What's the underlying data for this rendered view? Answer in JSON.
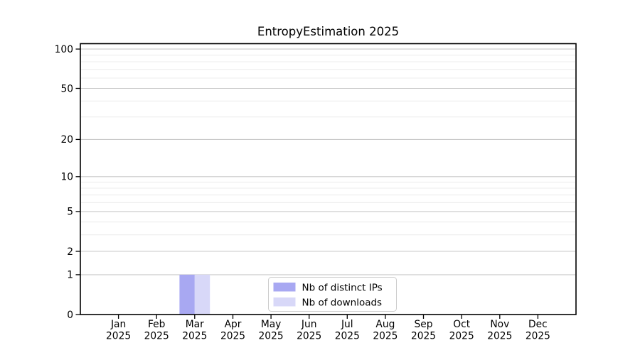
{
  "chart_data": {
    "type": "bar",
    "title": "EntropyEstimation 2025",
    "categories": [
      {
        "month": "Jan",
        "year": "2025"
      },
      {
        "month": "Feb",
        "year": "2025"
      },
      {
        "month": "Mar",
        "year": "2025"
      },
      {
        "month": "Apr",
        "year": "2025"
      },
      {
        "month": "May",
        "year": "2025"
      },
      {
        "month": "Jun",
        "year": "2025"
      },
      {
        "month": "Jul",
        "year": "2025"
      },
      {
        "month": "Aug",
        "year": "2025"
      },
      {
        "month": "Sep",
        "year": "2025"
      },
      {
        "month": "Oct",
        "year": "2025"
      },
      {
        "month": "Nov",
        "year": "2025"
      },
      {
        "month": "Dec",
        "year": "2025"
      }
    ],
    "series": [
      {
        "name": "Nb of distinct IPs",
        "color": "#a8a8f2",
        "values": [
          0,
          0,
          1,
          0,
          0,
          0,
          0,
          0,
          0,
          0,
          0,
          0
        ]
      },
      {
        "name": "Nb of downloads",
        "color": "#d8d8f8",
        "values": [
          0,
          0,
          1,
          0,
          0,
          0,
          0,
          0,
          0,
          0,
          0,
          0
        ]
      }
    ],
    "xlabel": "",
    "ylabel": "",
    "yscale": "log1p",
    "ylim": [
      0,
      110
    ],
    "y_ticks": [
      0,
      1,
      2,
      5,
      10,
      20,
      50,
      100
    ],
    "y_minor_ticks": [
      3,
      4,
      6,
      7,
      8,
      9,
      30,
      40,
      60,
      70,
      80,
      90
    ],
    "grid": true,
    "legend": {
      "position": "lower center"
    },
    "colors": {
      "background": "#ffffff",
      "spine": "#000000",
      "grid_major": "#c9c9c9",
      "grid_minor": "#ececec",
      "tick_text": "#000000",
      "legend_border": "#cccccc",
      "legend_background": "#ffffff"
    }
  }
}
